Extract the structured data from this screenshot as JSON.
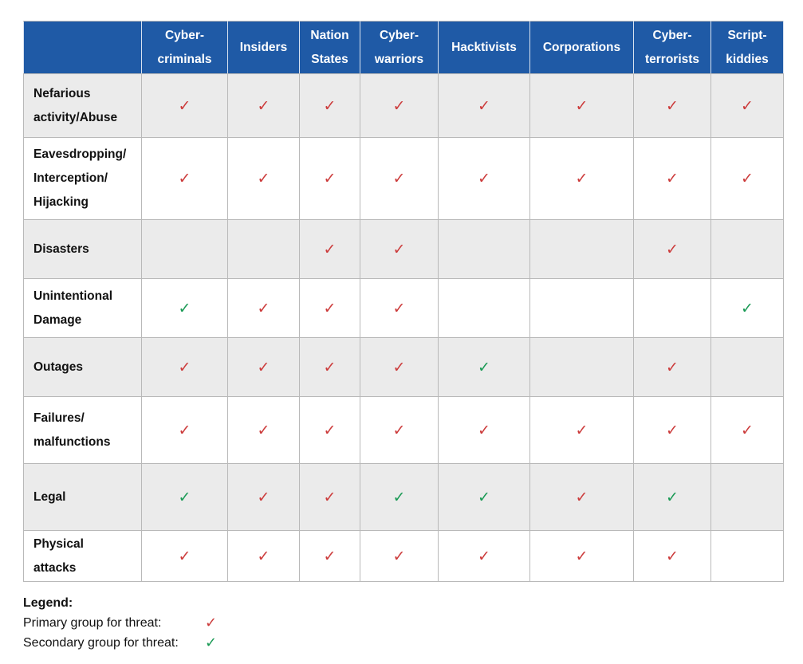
{
  "table": {
    "columns": [
      "Cyber-\ncriminals",
      "Insiders",
      "Nation\nStates",
      "Cyber-\nwarriors",
      "Hacktivists",
      "Corporations",
      "Cyber-\nterrorists",
      "Script-\nkiddies"
    ],
    "rows": [
      {
        "threat": "Nefarious\nactivity/Abuse",
        "marks": [
          "P",
          "P",
          "P",
          "P",
          "P",
          "P",
          "P",
          "P"
        ]
      },
      {
        "threat": "Eavesdropping/\nInterception/\nHijacking",
        "marks": [
          "P",
          "P",
          "P",
          "P",
          "P",
          "P",
          "P",
          "P"
        ]
      },
      {
        "threat": "Disasters",
        "marks": [
          "",
          "",
          "P",
          "P",
          "",
          "",
          "P",
          ""
        ]
      },
      {
        "threat": "Unintentional\nDamage",
        "marks": [
          "S",
          "P",
          "P",
          "P",
          "",
          "",
          "",
          "S"
        ]
      },
      {
        "threat": "Outages",
        "marks": [
          "P",
          "P",
          "P",
          "P",
          "S",
          "",
          "P",
          ""
        ]
      },
      {
        "threat": "Failures/\nmalfunctions",
        "marks": [
          "P",
          "P",
          "P",
          "P",
          "P",
          "P",
          "P",
          "P"
        ]
      },
      {
        "threat": "Legal",
        "marks": [
          "S",
          "P",
          "P",
          "S",
          "S",
          "P",
          "S",
          ""
        ]
      },
      {
        "threat": "Physical\nattacks",
        "marks": [
          "P",
          "P",
          "P",
          "P",
          "P",
          "P",
          "P",
          ""
        ]
      }
    ]
  },
  "marks": {
    "glyph": "✓",
    "primary_color": "#cc3b3b",
    "secondary_color": "#1a9a55",
    "primary_code": "P",
    "secondary_code": "S"
  },
  "legend": {
    "title": "Legend:",
    "primary_label": "Primary group for threat:",
    "secondary_label": "Secondary group for threat:",
    "primary_icon": "red-check-icon",
    "secondary_icon": "green-check-icon"
  },
  "colors": {
    "header_bg": "#1f5aa6",
    "header_text": "#ffffff",
    "shaded_row_bg": "#ebebeb",
    "grid_line": "#b9b9b9"
  }
}
